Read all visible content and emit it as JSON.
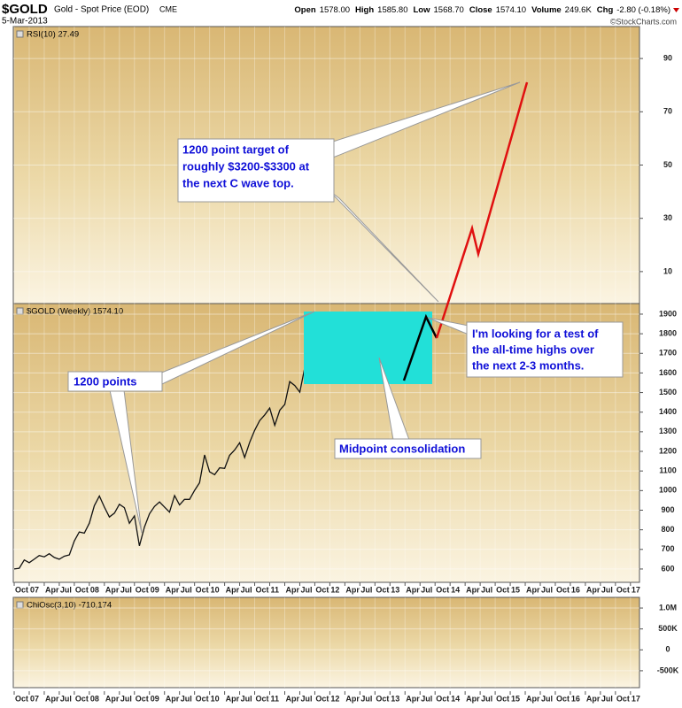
{
  "header": {
    "symbol": "$GOLD",
    "name": "Gold - Spot Price (EOD)",
    "exchange": "CME",
    "date": "5-Mar-2013",
    "quote": [
      {
        "label": "Open",
        "value": "1578.00"
      },
      {
        "label": "High",
        "value": "1585.80"
      },
      {
        "label": "Low",
        "value": "1568.70"
      },
      {
        "label": "Close",
        "value": "1574.10"
      },
      {
        "label": "Volume",
        "value": "249.6K"
      },
      {
        "label": "Chg",
        "value": "-2.80 (-0.18%)"
      }
    ],
    "copyright": "©StockCharts.com"
  },
  "chart_data": [
    {
      "type": "line",
      "title": "RSI(10) 27.49",
      "ylim": [
        -2,
        102
      ],
      "yticks": [
        10,
        30,
        50,
        70,
        90
      ],
      "grid": true
    },
    {
      "type": "line",
      "title": "$GOLD (Weekly) 1574.10",
      "grid": true,
      "xlim": [
        2006.735,
        2017.15
      ],
      "xticks": [
        {
          "value": 2006.75,
          "label": "Oct"
        },
        {
          "value": 2007,
          "label": "07"
        },
        {
          "value": 2007.25,
          "label": "Apr"
        },
        {
          "value": 2007.5,
          "label": "Jul"
        },
        {
          "value": 2007.75,
          "label": "Oct"
        },
        {
          "value": 2008,
          "label": "08"
        },
        {
          "value": 2008.25,
          "label": "Apr"
        },
        {
          "value": 2008.5,
          "label": "Jul"
        },
        {
          "value": 2008.75,
          "label": "Oct"
        },
        {
          "value": 2009,
          "label": "09"
        },
        {
          "value": 2009.25,
          "label": "Apr"
        },
        {
          "value": 2009.5,
          "label": "Jul"
        },
        {
          "value": 2009.75,
          "label": "Oct"
        },
        {
          "value": 2010,
          "label": "10"
        },
        {
          "value": 2010.25,
          "label": "Apr"
        },
        {
          "value": 2010.5,
          "label": "Jul"
        },
        {
          "value": 2010.75,
          "label": "Oct"
        },
        {
          "value": 2011,
          "label": "11"
        },
        {
          "value": 2011.25,
          "label": "Apr"
        },
        {
          "value": 2011.5,
          "label": "Jul"
        },
        {
          "value": 2011.75,
          "label": "Oct"
        },
        {
          "value": 2012,
          "label": "12"
        },
        {
          "value": 2012.25,
          "label": "Apr"
        },
        {
          "value": 2012.5,
          "label": "Jul"
        },
        {
          "value": 2012.75,
          "label": "Oct"
        },
        {
          "value": 2013,
          "label": "13"
        },
        {
          "value": 2013.25,
          "label": "Apr"
        },
        {
          "value": 2013.5,
          "label": "Jul"
        },
        {
          "value": 2013.75,
          "label": "Oct"
        },
        {
          "value": 2014,
          "label": "14"
        },
        {
          "value": 2014.25,
          "label": "Apr"
        },
        {
          "value": 2014.5,
          "label": "Jul"
        },
        {
          "value": 2014.75,
          "label": "Oct"
        },
        {
          "value": 2015,
          "label": "15"
        },
        {
          "value": 2015.25,
          "label": "Apr"
        },
        {
          "value": 2015.5,
          "label": "Jul"
        },
        {
          "value": 2015.75,
          "label": "Oct"
        },
        {
          "value": 2016,
          "label": "16"
        },
        {
          "value": 2016.25,
          "label": "Apr"
        },
        {
          "value": 2016.5,
          "label": "Jul"
        },
        {
          "value": 2016.75,
          "label": "Oct"
        },
        {
          "value": 2017,
          "label": "17"
        }
      ],
      "ylim": [
        532,
        1954
      ],
      "yticks": [
        600,
        700,
        800,
        900,
        1000,
        1100,
        1200,
        1300,
        1400,
        1500,
        1600,
        1700,
        1800,
        1900
      ],
      "series": [
        {
          "color": "#111111",
          "x": [
            2006.75,
            2006.833,
            2006.917,
            2007.0,
            2007.083,
            2007.167,
            2007.25,
            2007.333,
            2007.417,
            2007.5,
            2007.583,
            2007.667,
            2007.75,
            2007.833,
            2007.917,
            2008.0,
            2008.083,
            2008.167,
            2008.25,
            2008.333,
            2008.417,
            2008.5,
            2008.583,
            2008.667,
            2008.75,
            2008.833,
            2008.917,
            2009.0,
            2009.083,
            2009.167,
            2009.25,
            2009.333,
            2009.417,
            2009.5,
            2009.583,
            2009.667,
            2009.75,
            2009.833,
            2009.917,
            2010.0,
            2010.083,
            2010.167,
            2010.25,
            2010.333,
            2010.417,
            2010.5,
            2010.583,
            2010.667,
            2010.75,
            2010.833,
            2010.917,
            2011.0,
            2011.083,
            2011.167,
            2011.25,
            2011.333,
            2011.417,
            2011.5,
            2011.583,
            2011.667,
            2011.75,
            2011.833,
            2011.917,
            2012.0,
            2012.083,
            2012.167,
            2012.25,
            2012.333,
            2012.417,
            2012.5,
            2012.583,
            2012.667,
            2012.75,
            2012.833,
            2012.917,
            2013.0,
            2013.083,
            2013.167,
            2013.175
          ],
          "values": [
            600,
            604,
            646,
            632,
            650,
            669,
            662,
            678,
            659,
            650,
            665,
            672,
            743,
            789,
            783,
            834,
            923,
            972,
            916,
            865,
            885,
            930,
            913,
            833,
            871,
            718,
            814,
            882,
            919,
            942,
            916,
            890,
            975,
            927,
            955,
            955,
            1001,
            1040,
            1182,
            1096,
            1081,
            1116,
            1113,
            1180,
            1207,
            1244,
            1169,
            1246,
            1307,
            1357,
            1386,
            1421,
            1333,
            1410,
            1439,
            1556,
            1536,
            1502,
            1628,
            1826,
            1624,
            1722,
            1746,
            1566,
            1737,
            1697,
            1669,
            1664,
            1559,
            1604,
            1614,
            1692,
            1772,
            1720,
            1714,
            1675,
            1662,
            1578,
            1574.1
          ]
        }
      ]
    },
    {
      "type": "line",
      "title": "ChiOsc(3,10) -710,174",
      "ylim": [
        -904000,
        1255000
      ],
      "yticks": [
        {
          "value": -500000,
          "label": "-500K"
        },
        0,
        {
          "value": 500000,
          "label": "500K"
        },
        {
          "value": 1000000,
          "label": "1.0M"
        }
      ],
      "grid": true
    }
  ],
  "annotations": [
    {
      "lines": [
        "1200 point target of",
        "roughly $3200-$3300 at",
        "the next C wave top."
      ]
    },
    {
      "lines": [
        "I'm looking for a test of",
        "the all-time highs over",
        "the next 2-3 months."
      ]
    },
    {
      "lines": [
        "1200 points"
      ]
    },
    {
      "lines": [
        "Midpoint consolidation"
      ]
    }
  ]
}
